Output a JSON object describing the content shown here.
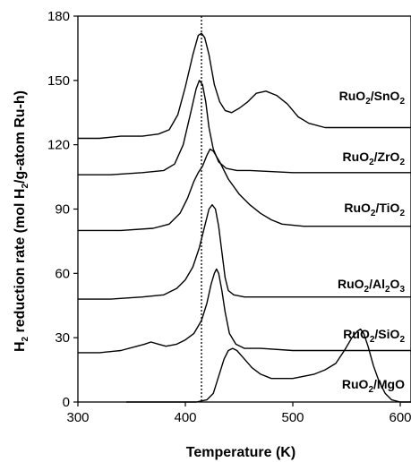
{
  "chart_data": {
    "type": "line",
    "xlabel": "Temperature (K)",
    "ylabel_parts": [
      "H",
      "2",
      " reduction rate (mol H",
      "2",
      "/g-atom Ru-h)"
    ],
    "xlim": [
      300,
      610
    ],
    "ylim": [
      0,
      180
    ],
    "xticks": [
      300,
      400,
      500,
      600
    ],
    "yticks": [
      0,
      30,
      60,
      90,
      120,
      150,
      180
    ],
    "reference_line_x": 415,
    "series": [
      {
        "name": "RuO2/SnO2",
        "label_parts": [
          "RuO",
          "2",
          "/SnO",
          "2"
        ],
        "points": [
          [
            300,
            123
          ],
          [
            320,
            123
          ],
          [
            340,
            124
          ],
          [
            360,
            124
          ],
          [
            375,
            125
          ],
          [
            385,
            127
          ],
          [
            393,
            134
          ],
          [
            400,
            147
          ],
          [
            407,
            162
          ],
          [
            412,
            171
          ],
          [
            415,
            172
          ],
          [
            418,
            170
          ],
          [
            422,
            162
          ],
          [
            427,
            148
          ],
          [
            432,
            140
          ],
          [
            437,
            136
          ],
          [
            443,
            135
          ],
          [
            450,
            137
          ],
          [
            458,
            140
          ],
          [
            466,
            144
          ],
          [
            475,
            145
          ],
          [
            485,
            143
          ],
          [
            495,
            139
          ],
          [
            505,
            133
          ],
          [
            515,
            130
          ],
          [
            530,
            128
          ],
          [
            550,
            128
          ],
          [
            570,
            128
          ],
          [
            590,
            128
          ],
          [
            610,
            128
          ]
        ]
      },
      {
        "name": "RuO2/ZrO2",
        "label_parts": [
          "RuO",
          "2",
          "/ZrO",
          "2"
        ],
        "points": [
          [
            300,
            106
          ],
          [
            330,
            106
          ],
          [
            360,
            107
          ],
          [
            380,
            108
          ],
          [
            390,
            111
          ],
          [
            398,
            120
          ],
          [
            405,
            135
          ],
          [
            410,
            146
          ],
          [
            413,
            150
          ],
          [
            416,
            148
          ],
          [
            419,
            140
          ],
          [
            422,
            128
          ],
          [
            426,
            118
          ],
          [
            431,
            112
          ],
          [
            438,
            109
          ],
          [
            448,
            108
          ],
          [
            460,
            108
          ],
          [
            500,
            107
          ],
          [
            560,
            107
          ],
          [
            610,
            107
          ]
        ]
      },
      {
        "name": "RuO2/TiO2",
        "label_parts": [
          "RuO",
          "2",
          "/TiO",
          "2"
        ],
        "points": [
          [
            300,
            80
          ],
          [
            340,
            80
          ],
          [
            370,
            81
          ],
          [
            385,
            83
          ],
          [
            395,
            88
          ],
          [
            402,
            95
          ],
          [
            408,
            103
          ],
          [
            412,
            107
          ],
          [
            416,
            110
          ],
          [
            420,
            115
          ],
          [
            423,
            118
          ],
          [
            426,
            117
          ],
          [
            432,
            112
          ],
          [
            440,
            104
          ],
          [
            450,
            97
          ],
          [
            460,
            92
          ],
          [
            470,
            88
          ],
          [
            480,
            85
          ],
          [
            490,
            83
          ],
          [
            510,
            82
          ],
          [
            540,
            82
          ],
          [
            570,
            82
          ],
          [
            610,
            82
          ]
        ]
      },
      {
        "name": "RuO2/Al2O3",
        "label_parts": [
          "RuO",
          "2",
          "/Al",
          "2",
          "O",
          "3"
        ],
        "points": [
          [
            300,
            48
          ],
          [
            330,
            48
          ],
          [
            360,
            49
          ],
          [
            380,
            50
          ],
          [
            392,
            53
          ],
          [
            400,
            57
          ],
          [
            407,
            63
          ],
          [
            413,
            72
          ],
          [
            418,
            82
          ],
          [
            422,
            90
          ],
          [
            425,
            92
          ],
          [
            428,
            90
          ],
          [
            431,
            82
          ],
          [
            434,
            70
          ],
          [
            437,
            58
          ],
          [
            440,
            52
          ],
          [
            445,
            50
          ],
          [
            455,
            49
          ],
          [
            480,
            49
          ],
          [
            520,
            49
          ],
          [
            570,
            49
          ],
          [
            610,
            49
          ]
        ]
      },
      {
        "name": "RuO2/SiO2",
        "label_parts": [
          "RuO",
          "2",
          "/SiO",
          "2"
        ],
        "points": [
          [
            300,
            23
          ],
          [
            320,
            23
          ],
          [
            340,
            24
          ],
          [
            355,
            26
          ],
          [
            362,
            27
          ],
          [
            368,
            28
          ],
          [
            375,
            27
          ],
          [
            382,
            26
          ],
          [
            392,
            27
          ],
          [
            400,
            29
          ],
          [
            408,
            32
          ],
          [
            415,
            38
          ],
          [
            420,
            46
          ],
          [
            424,
            55
          ],
          [
            427,
            60
          ],
          [
            429,
            62
          ],
          [
            431,
            60
          ],
          [
            434,
            52
          ],
          [
            437,
            42
          ],
          [
            441,
            32
          ],
          [
            447,
            27
          ],
          [
            455,
            25
          ],
          [
            470,
            25
          ],
          [
            500,
            24
          ],
          [
            550,
            24
          ],
          [
            610,
            24
          ]
        ]
      },
      {
        "name": "RuO2/MgO",
        "label_parts": [
          "RuO",
          "2",
          "/MgO"
        ],
        "points": [
          [
            345,
            0
          ],
          [
            380,
            0
          ],
          [
            410,
            0
          ],
          [
            420,
            1
          ],
          [
            426,
            4
          ],
          [
            431,
            12
          ],
          [
            436,
            20
          ],
          [
            440,
            24
          ],
          [
            444,
            25
          ],
          [
            448,
            24
          ],
          [
            455,
            20
          ],
          [
            462,
            16
          ],
          [
            470,
            13
          ],
          [
            480,
            11
          ],
          [
            490,
            11
          ],
          [
            500,
            11
          ],
          [
            510,
            12
          ],
          [
            520,
            13
          ],
          [
            530,
            15
          ],
          [
            540,
            18
          ],
          [
            548,
            24
          ],
          [
            555,
            30
          ],
          [
            560,
            33
          ],
          [
            563,
            34
          ],
          [
            566,
            32
          ],
          [
            570,
            26
          ],
          [
            575,
            17
          ],
          [
            580,
            10
          ],
          [
            586,
            4
          ],
          [
            592,
            1
          ],
          [
            600,
            0
          ],
          [
            610,
            0
          ]
        ]
      }
    ]
  }
}
